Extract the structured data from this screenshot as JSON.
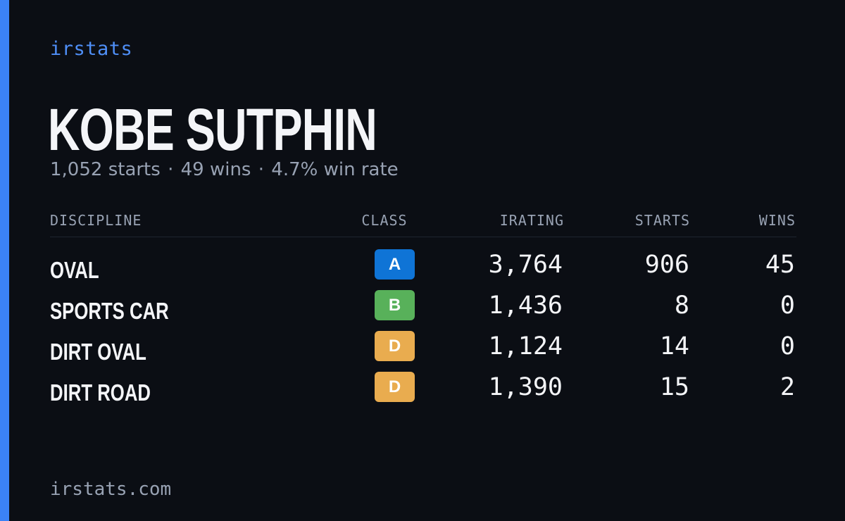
{
  "brand": "irstats",
  "player": {
    "name": "KOBE SUTPHIN",
    "starts_text": "1,052 starts",
    "wins_text": "49 wins",
    "win_rate_text": "4.7% win rate",
    "separator": "·"
  },
  "table": {
    "headers": {
      "discipline": "DISCIPLINE",
      "class": "CLASS",
      "irating": "IRATING",
      "starts": "STARTS",
      "wins": "WINS"
    },
    "rows": [
      {
        "discipline": "OVAL",
        "class": "A",
        "class_color": "#0f74d6",
        "irating": "3,764",
        "starts": "906",
        "wins": "45"
      },
      {
        "discipline": "SPORTS CAR",
        "class": "B",
        "class_color": "#58b15a",
        "irating": "1,436",
        "starts": "8",
        "wins": "0"
      },
      {
        "discipline": "DIRT OVAL",
        "class": "D",
        "class_color": "#e9ac4f",
        "irating": "1,124",
        "starts": "14",
        "wins": "0"
      },
      {
        "discipline": "DIRT ROAD",
        "class": "D",
        "class_color": "#e9ac4f",
        "irating": "1,390",
        "starts": "15",
        "wins": "2"
      }
    ]
  },
  "footer": "irstats.com",
  "colors": {
    "accent": "#3b82f6",
    "background": "#0b0e14",
    "muted_text": "#98a2b3",
    "primary_text": "#f4f5f8"
  }
}
